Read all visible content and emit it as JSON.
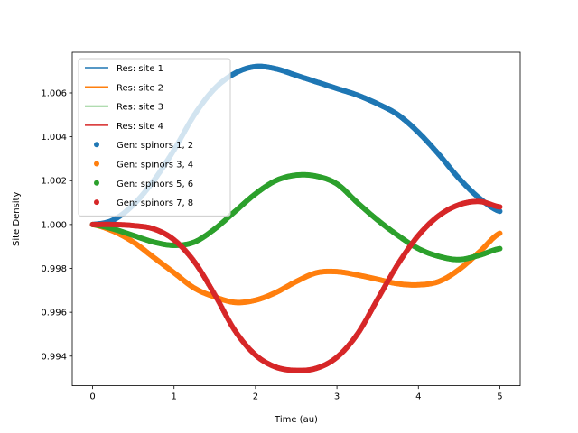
{
  "chart_data": {
    "type": "line",
    "title": "",
    "xlabel": "Time (au)",
    "ylabel": "Site Density",
    "xlim": [
      -0.25,
      5.25
    ],
    "ylim": [
      0.99265,
      1.00785
    ],
    "xticks": [
      0,
      1,
      2,
      3,
      4,
      5
    ],
    "xtick_labels": [
      "0",
      "1",
      "2",
      "3",
      "4",
      "5"
    ],
    "yticks": [
      0.994,
      0.996,
      0.998,
      1.0,
      1.002,
      1.004,
      1.006
    ],
    "ytick_labels": [
      "0.994",
      "0.996",
      "0.998",
      "1.000",
      "1.002",
      "1.004",
      "1.006"
    ],
    "grid": false,
    "legend_position": "top-left",
    "x": [
      0,
      0.25,
      0.5,
      0.75,
      1.0,
      1.25,
      1.5,
      1.75,
      2.0,
      2.25,
      2.5,
      2.75,
      3.0,
      3.25,
      3.5,
      3.75,
      4.0,
      4.25,
      4.5,
      4.75,
      5.0
    ],
    "series": [
      {
        "name": "Res: site 1",
        "kind": "line",
        "color": "#1f77b4",
        "values": [
          1.0,
          1.0002,
          1.0009,
          1.002,
          1.0034,
          1.005,
          1.0062,
          1.0069,
          1.0072,
          1.0071,
          1.0068,
          1.0065,
          1.0062,
          1.0059,
          1.0055,
          1.005,
          1.0042,
          1.0032,
          1.0021,
          1.0012,
          1.0006
        ]
      },
      {
        "name": "Res: site 2",
        "kind": "line",
        "color": "#ff7f0e",
        "values": [
          1.0,
          0.9997,
          0.9992,
          0.9985,
          0.9978,
          0.9971,
          0.9967,
          0.99645,
          0.99655,
          0.9969,
          0.9974,
          0.9978,
          0.99785,
          0.9977,
          0.9975,
          0.9973,
          0.99725,
          0.9974,
          0.99795,
          0.99875,
          0.9996
        ]
      },
      {
        "name": "Res: site 3",
        "kind": "line",
        "color": "#2ca02c",
        "values": [
          1.0,
          0.9998,
          0.9995,
          0.9992,
          0.99905,
          0.9992,
          0.9998,
          1.0006,
          1.0014,
          1.002,
          1.00225,
          1.0022,
          1.00185,
          1.001,
          1.0002,
          0.9995,
          0.9989,
          0.99855,
          0.9984,
          0.9986,
          0.9989
        ]
      },
      {
        "name": "Res: site 4",
        "kind": "line",
        "color": "#d62728",
        "values": [
          1.0,
          1.0,
          0.99995,
          0.9998,
          0.9993,
          0.9983,
          0.9968,
          0.99515,
          0.99405,
          0.9935,
          0.99335,
          0.99345,
          0.99395,
          0.995,
          0.9966,
          0.9982,
          0.9995,
          1.0004,
          1.0009,
          1.00105,
          1.0008
        ]
      },
      {
        "name": "Gen: spinors 1, 2",
        "kind": "scatter",
        "color": "#1f77b4",
        "values": [
          1.0,
          1.0002,
          1.0009,
          1.002,
          1.0034,
          1.005,
          1.0062,
          1.0069,
          1.0072,
          1.0071,
          1.0068,
          1.0065,
          1.0062,
          1.0059,
          1.0055,
          1.005,
          1.0042,
          1.0032,
          1.0021,
          1.0012,
          1.0006
        ]
      },
      {
        "name": "Gen: spinors 3, 4",
        "kind": "scatter",
        "color": "#ff7f0e",
        "values": [
          1.0,
          0.9997,
          0.9992,
          0.9985,
          0.9978,
          0.9971,
          0.9967,
          0.99645,
          0.99655,
          0.9969,
          0.9974,
          0.9978,
          0.99785,
          0.9977,
          0.9975,
          0.9973,
          0.99725,
          0.9974,
          0.99795,
          0.99875,
          0.9996
        ]
      },
      {
        "name": "Gen: spinors 5, 6",
        "kind": "scatter",
        "color": "#2ca02c",
        "values": [
          1.0,
          0.9998,
          0.9995,
          0.9992,
          0.99905,
          0.9992,
          0.9998,
          1.0006,
          1.0014,
          1.002,
          1.00225,
          1.0022,
          1.00185,
          1.001,
          1.0002,
          0.9995,
          0.9989,
          0.99855,
          0.9984,
          0.9986,
          0.9989
        ]
      },
      {
        "name": "Gen: spinors 7, 8",
        "kind": "scatter",
        "color": "#d62728",
        "values": [
          1.0,
          1.0,
          0.99995,
          0.9998,
          0.9993,
          0.9983,
          0.9968,
          0.99515,
          0.99405,
          0.9935,
          0.99335,
          0.99345,
          0.99395,
          0.995,
          0.9966,
          0.9982,
          0.9995,
          1.0004,
          1.0009,
          1.00105,
          1.0008
        ]
      }
    ]
  }
}
